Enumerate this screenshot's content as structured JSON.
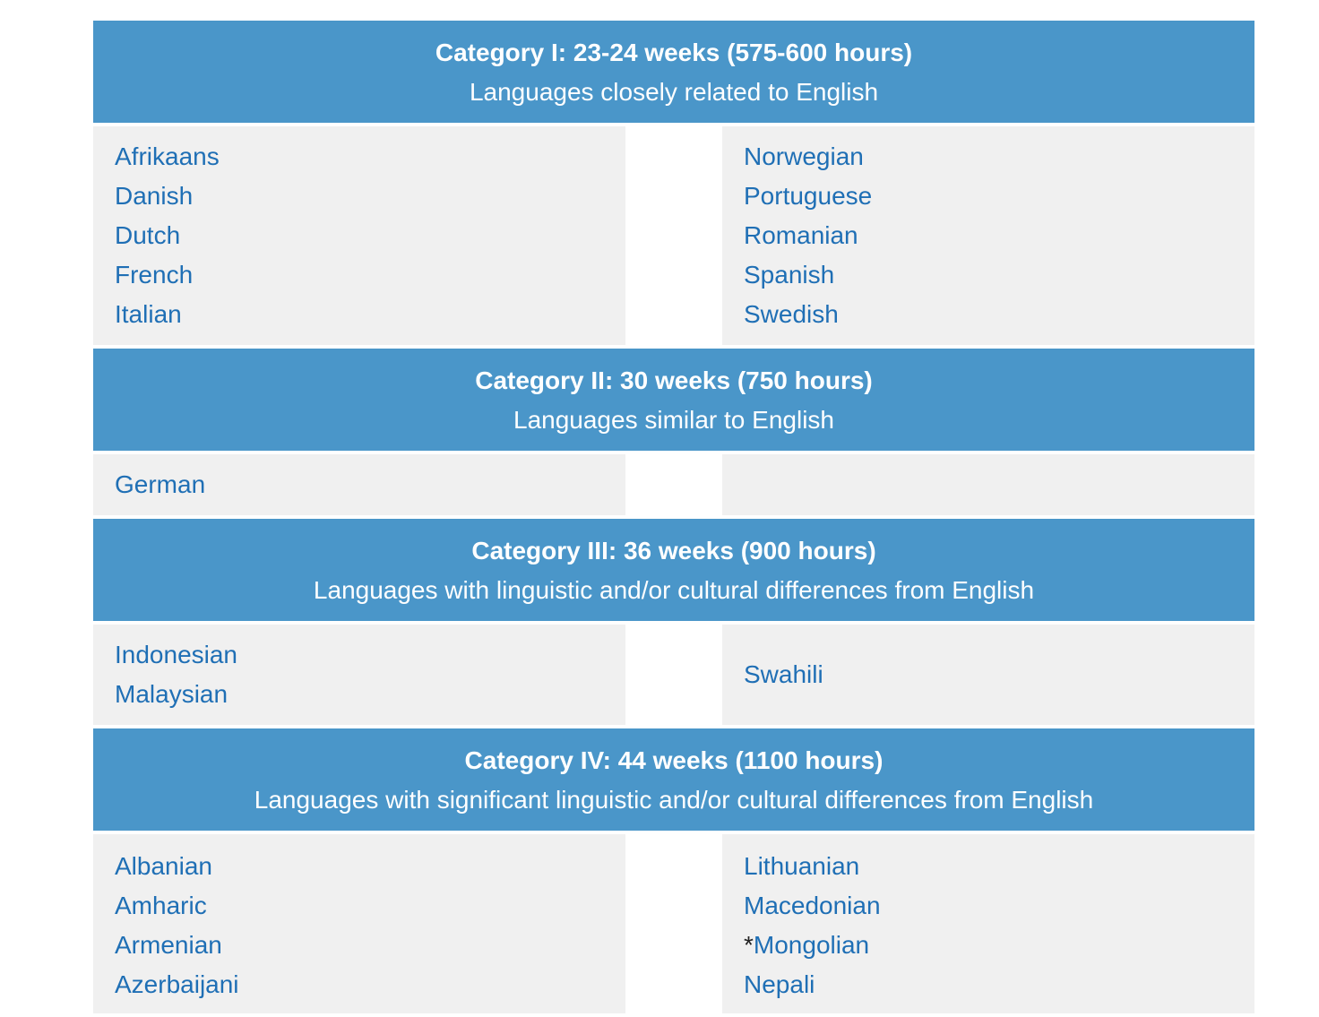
{
  "categories": [
    {
      "title": "Category I: 23-24 weeks (575-600 hours)",
      "subtitle": "Languages closely related to English",
      "left": [
        "Afrikaans",
        "Danish",
        "Dutch",
        "French",
        "Italian"
      ],
      "right": [
        "Norwegian",
        "Portuguese",
        "Romanian",
        "Spanish",
        "Swedish"
      ]
    },
    {
      "title": "Category II: 30 weeks (750 hours)",
      "subtitle": "Languages similar to English",
      "left": [
        "German"
      ],
      "right": []
    },
    {
      "title": "Category III: 36 weeks (900 hours)",
      "subtitle": "Languages with linguistic and/or cultural differences from English",
      "left": [
        "Indonesian",
        "Malaysian"
      ],
      "right": [
        "Swahili"
      ]
    },
    {
      "title": "Category IV: 44 weeks (1100 hours)",
      "subtitle": "Languages with significant linguistic and/or cultural differences from English",
      "left": [
        "Albanian",
        "Amharic",
        "Armenian",
        "Azerbaijani"
      ],
      "right": [
        "Lithuanian",
        "Macedonian",
        "Mongolian",
        "Nepali"
      ],
      "right_marks": {
        "Mongolian": "*"
      }
    }
  ],
  "colors": {
    "header_bg": "#4a96c9",
    "cell_bg": "#f0f0f0",
    "link_text": "#1f6fb5"
  }
}
